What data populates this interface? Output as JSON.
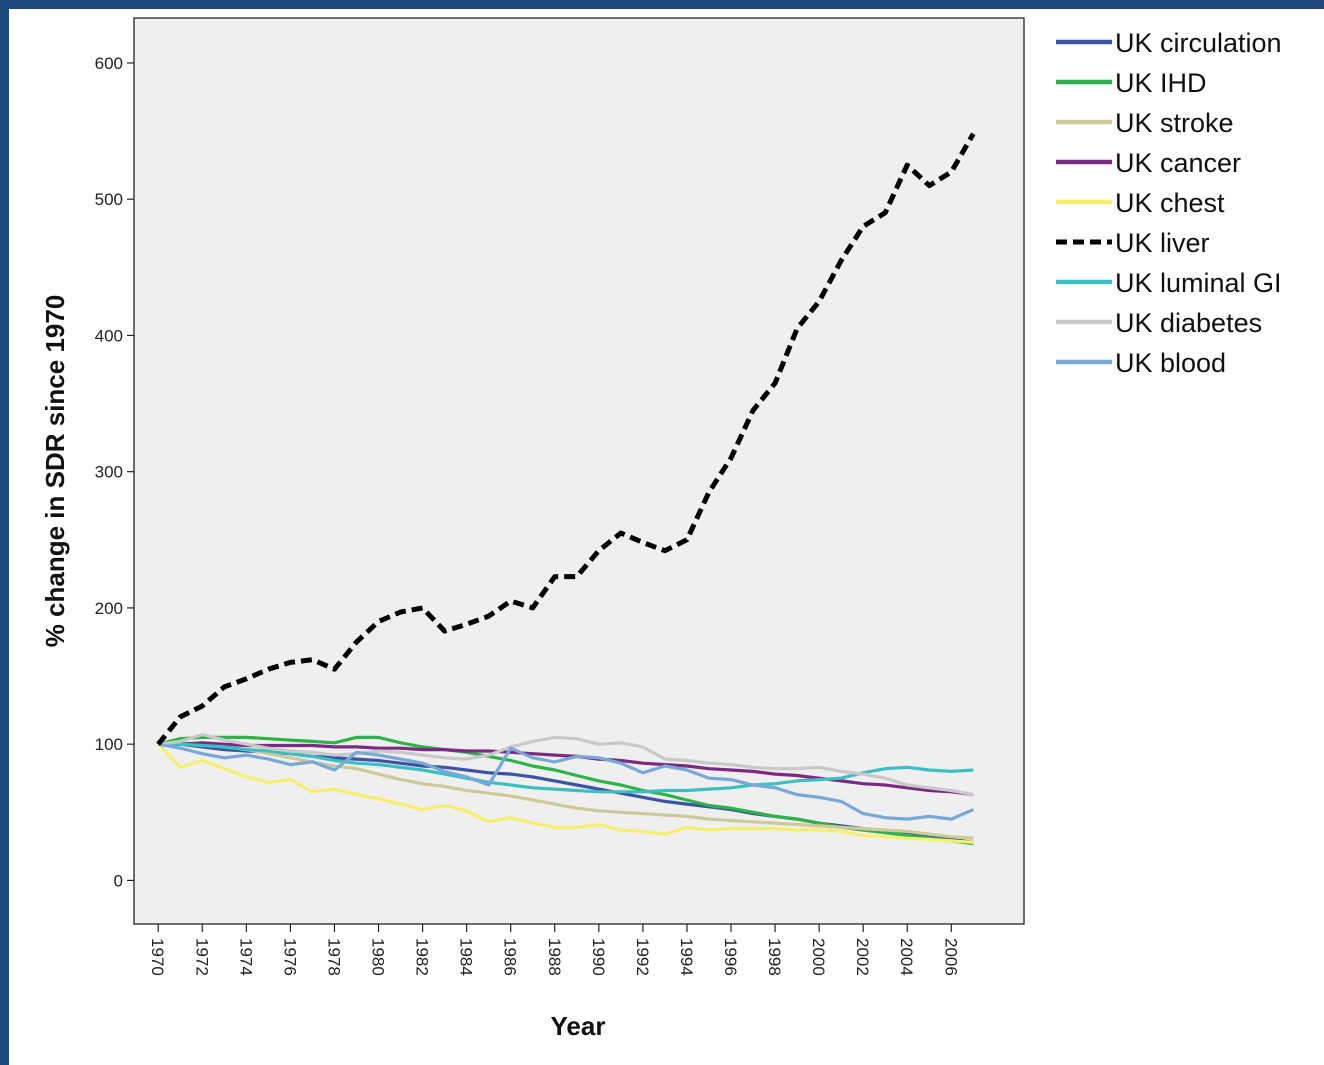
{
  "chart_data": {
    "type": "line",
    "title": "",
    "xlabel": "Year",
    "ylabel": "% change in SDR since 1970",
    "xlim": [
      1968.9,
      2009.3
    ],
    "ylim": [
      -32,
      633
    ],
    "y_ticks": [
      0,
      100,
      200,
      300,
      400,
      500,
      600
    ],
    "x_ticks": [
      1970,
      1972,
      1974,
      1976,
      1978,
      1980,
      1982,
      1984,
      1986,
      1988,
      1990,
      1992,
      1994,
      1996,
      1998,
      2000,
      2002,
      2004,
      2006
    ],
    "grid": false,
    "legend_position": "outside-right",
    "x": [
      1970,
      1971,
      1972,
      1973,
      1974,
      1975,
      1976,
      1977,
      1978,
      1979,
      1980,
      1981,
      1982,
      1983,
      1984,
      1985,
      1986,
      1987,
      1988,
      1989,
      1990,
      1991,
      1992,
      1993,
      1994,
      1995,
      1996,
      1997,
      1998,
      1999,
      2000,
      2001,
      2002,
      2003,
      2004,
      2005,
      2006,
      2007
    ],
    "series": [
      {
        "name": "UK circulation",
        "color": "#3a53a4",
        "dash": false,
        "values": [
          100,
          100,
          98,
          96,
          95,
          94,
          93,
          91,
          90,
          89,
          88,
          86,
          84,
          83,
          81,
          79,
          78,
          76,
          73,
          70,
          67,
          64,
          61,
          58,
          56,
          54,
          52,
          49,
          47,
          45,
          42,
          40,
          38,
          36,
          34,
          32,
          30,
          28
        ]
      },
      {
        "name": "UK IHD",
        "color": "#2db34a",
        "dash": false,
        "values": [
          100,
          104,
          105,
          105,
          105,
          104,
          103,
          102,
          101,
          105,
          105,
          101,
          98,
          96,
          94,
          91,
          88,
          84,
          81,
          77,
          73,
          70,
          66,
          63,
          59,
          55,
          53,
          50,
          47,
          45,
          42,
          39,
          37,
          35,
          33,
          31,
          29,
          27
        ]
      },
      {
        "name": "UK stroke",
        "color": "#cfc99a",
        "dash": false,
        "values": [
          100,
          101,
          100,
          98,
          96,
          93,
          90,
          87,
          84,
          82,
          78,
          74,
          71,
          69,
          66,
          64,
          62,
          59,
          56,
          53,
          51,
          50,
          49,
          48,
          47,
          45,
          44,
          43,
          42,
          41,
          40,
          39,
          38,
          37,
          36,
          34,
          32,
          31
        ]
      },
      {
        "name": "UK cancer",
        "color": "#7b2a82",
        "dash": false,
        "values": [
          100,
          100,
          101,
          100,
          99,
          99,
          99,
          99,
          98,
          98,
          97,
          97,
          96,
          96,
          95,
          95,
          94,
          93,
          92,
          91,
          89,
          88,
          86,
          85,
          84,
          82,
          81,
          80,
          78,
          77,
          75,
          73,
          71,
          70,
          68,
          66,
          65,
          63
        ]
      },
      {
        "name": "UK chest",
        "color": "#f5f06c",
        "dash": false,
        "values": [
          100,
          83,
          88,
          82,
          76,
          72,
          74,
          65,
          67,
          63,
          60,
          56,
          52,
          55,
          51,
          43,
          46,
          42,
          39,
          39,
          41,
          37,
          36,
          34,
          39,
          37,
          38,
          38,
          38,
          37,
          37,
          36,
          33,
          32,
          31,
          30,
          29,
          28
        ]
      },
      {
        "name": "UK liver",
        "color": "#000000",
        "dash": true,
        "values": [
          100,
          120,
          128,
          142,
          148,
          155,
          160,
          162,
          155,
          175,
          190,
          197,
          200,
          183,
          188,
          194,
          205,
          200,
          223,
          223,
          242,
          255,
          248,
          242,
          250,
          285,
          310,
          345,
          365,
          405,
          425,
          455,
          480,
          490,
          525,
          510,
          520,
          548
        ]
      },
      {
        "name": "UK luminal GI",
        "color": "#3cbfc2",
        "dash": false,
        "values": [
          100,
          100,
          99,
          98,
          96,
          95,
          93,
          91,
          88,
          86,
          85,
          83,
          81,
          78,
          75,
          72,
          70,
          68,
          67,
          66,
          65,
          65,
          65,
          66,
          66,
          67,
          68,
          70,
          71,
          73,
          74,
          75,
          79,
          82,
          83,
          81,
          80,
          81
        ]
      },
      {
        "name": "UK diabetes",
        "color": "#c8c8c8",
        "dash": false,
        "values": [
          100,
          102,
          107,
          103,
          100,
          97,
          95,
          94,
          92,
          93,
          95,
          94,
          92,
          90,
          89,
          92,
          98,
          102,
          105,
          104,
          100,
          101,
          98,
          89,
          88,
          86,
          85,
          83,
          82,
          82,
          83,
          80,
          78,
          75,
          70,
          68,
          66,
          63
        ]
      },
      {
        "name": "UK blood",
        "color": "#78a8d8",
        "dash": false,
        "values": [
          100,
          97,
          93,
          90,
          92,
          89,
          85,
          87,
          81,
          94,
          92,
          89,
          86,
          80,
          76,
          70,
          97,
          90,
          87,
          91,
          90,
          86,
          79,
          84,
          81,
          75,
          74,
          70,
          68,
          63,
          61,
          58,
          49,
          46,
          45,
          47,
          45,
          52
        ]
      }
    ]
  }
}
